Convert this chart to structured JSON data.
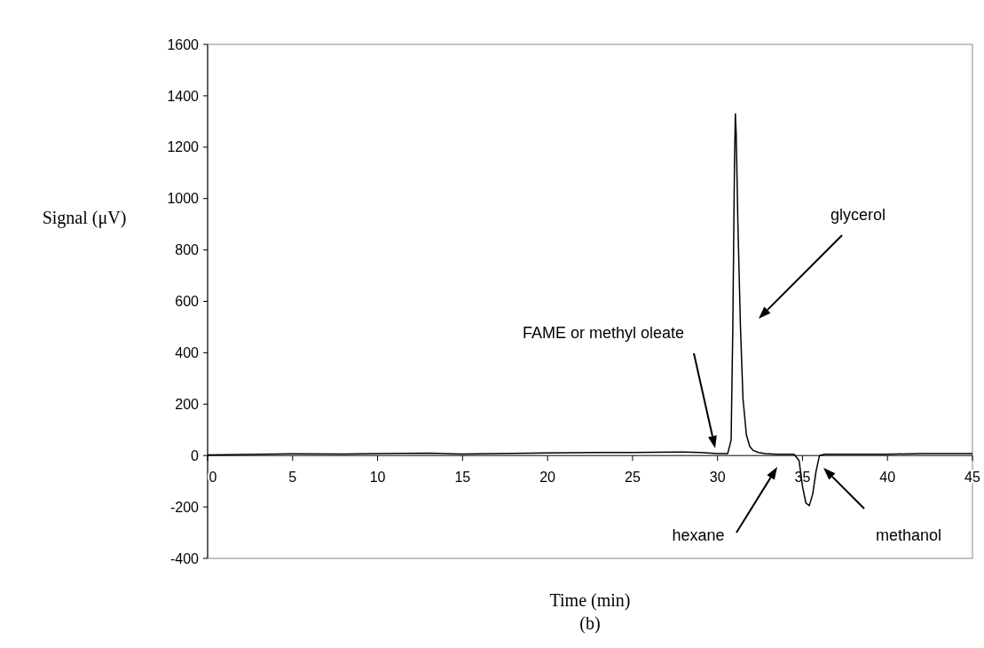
{
  "chart_data": {
    "type": "line",
    "xlabel": "Time (min)",
    "ylabel": "Signal (μV)",
    "subtitle": "(b)",
    "x": [
      0,
      2,
      5,
      8,
      10,
      13,
      15,
      17,
      20,
      23,
      25,
      28,
      29,
      30,
      30.6,
      30.8,
      30.9,
      31.0,
      31.05,
      31.1,
      31.2,
      31.35,
      31.5,
      31.7,
      31.9,
      32.1,
      32.4,
      32.8,
      33.5,
      34.5,
      34.8,
      35.0,
      35.2,
      35.4,
      35.6,
      35.8,
      36.0,
      36.3,
      37,
      40,
      42,
      45
    ],
    "series": [
      {
        "color": "#000000",
        "values": [
          2,
          4,
          7,
          6,
          8,
          9,
          6,
          8,
          10,
          12,
          12,
          14,
          12,
          8,
          8,
          60,
          500,
          1150,
          1330,
          1250,
          900,
          500,
          220,
          80,
          35,
          20,
          12,
          8,
          5,
          5,
          -20,
          -120,
          -185,
          -195,
          -150,
          -60,
          0,
          5,
          5,
          5,
          8,
          8
        ]
      }
    ],
    "xlim": [
      0,
      45
    ],
    "ylim": [
      -400,
      1600
    ],
    "xticks": [
      0,
      5,
      10,
      15,
      20,
      25,
      30,
      35,
      40,
      45
    ],
    "yticks": [
      -400,
      -200,
      0,
      200,
      400,
      600,
      800,
      1000,
      1200,
      1400,
      1600
    ],
    "grid": false,
    "marker": "none",
    "line_style": "solid",
    "annotations": [
      "FAME or methyl oleate",
      "glycerol",
      "hexane",
      "methanol"
    ]
  }
}
